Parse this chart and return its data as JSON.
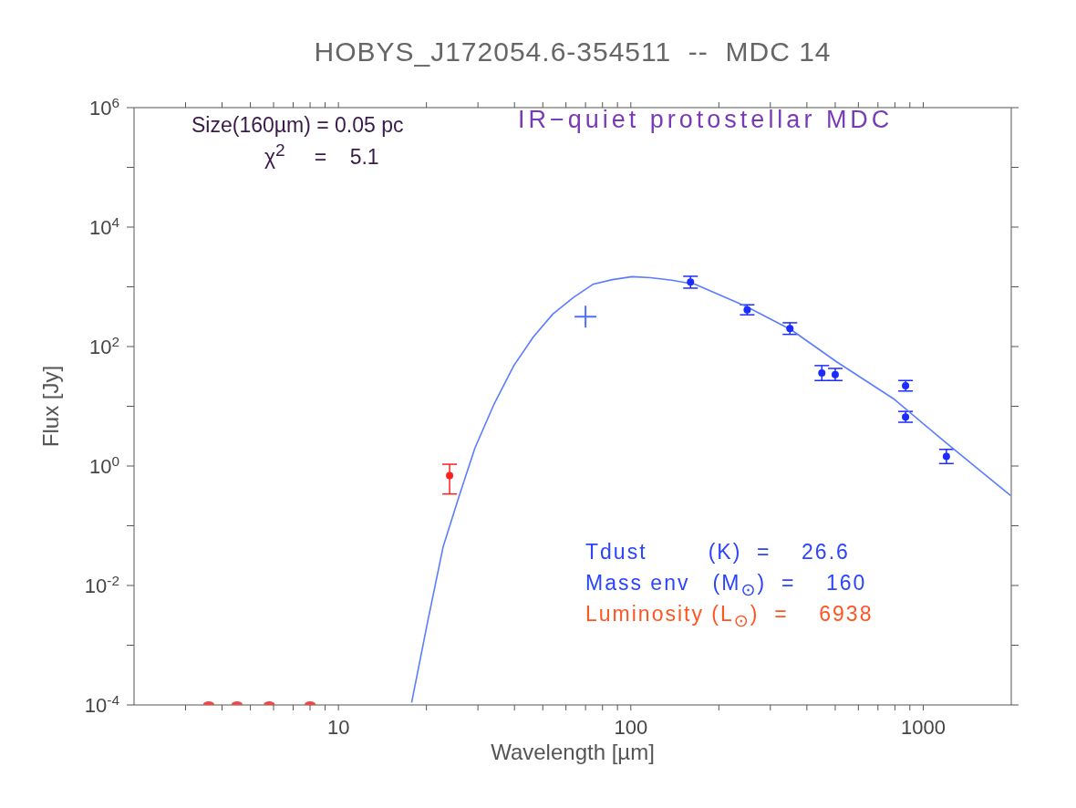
{
  "chart_data": {
    "type": "scatter",
    "title": "HOBYS_J172054.6-354511  --  MDC 14",
    "xlabel": "Wavelength [µm]",
    "ylabel": "Flux [Jy]",
    "log": "xy",
    "xlim": [
      2,
      2000
    ],
    "ylim": [
      0.0001,
      1000000
    ],
    "xticks": [
      {
        "value": 3,
        "label": null
      },
      {
        "value": 4,
        "label": null
      },
      {
        "value": 5,
        "label": null
      },
      {
        "value": 6,
        "label": null
      },
      {
        "value": 7,
        "label": null
      },
      {
        "value": 8,
        "label": null
      },
      {
        "value": 9,
        "label": null
      },
      10,
      {
        "value": 20,
        "label": null
      },
      {
        "value": 30,
        "label": null
      },
      {
        "value": 40,
        "label": null
      },
      {
        "value": 50,
        "label": null
      },
      {
        "value": 60,
        "label": null
      },
      {
        "value": 70,
        "label": null
      },
      {
        "value": 80,
        "label": null
      },
      {
        "value": 90,
        "label": null
      },
      100,
      {
        "value": 200,
        "label": null
      },
      {
        "value": 300,
        "label": null
      },
      {
        "value": 400,
        "label": null
      },
      {
        "value": 500,
        "label": null
      },
      {
        "value": 600,
        "label": null
      },
      {
        "value": 700,
        "label": null
      },
      {
        "value": 800,
        "label": null
      },
      {
        "value": 900,
        "label": null
      },
      1000
    ],
    "yticks": [
      {
        "value": 0.0001,
        "label": "10$^{-4}$"
      },
      {
        "value": 0.001,
        "label": null
      },
      {
        "value": 0.01,
        "label": "10$^{-2}$"
      },
      {
        "value": 0.1,
        "label": null
      },
      {
        "value": 1,
        "label": "10$^{0}$"
      },
      {
        "value": 10,
        "label": null
      },
      {
        "value": 100,
        "label": "10$^{2}$"
      },
      {
        "value": 1000,
        "label": null
      },
      {
        "value": 10000,
        "label": "10$^{4}$"
      },
      {
        "value": 100000,
        "label": null
      },
      {
        "value": 1000000,
        "label": "10$^{6}$"
      }
    ],
    "series": [
      {
        "type": "line",
        "color": "#5a7dff",
        "marker": "none",
        "x": [
          17.8,
          20.2,
          22.8,
          25.9,
          29.3,
          34.1,
          39.8,
          46.4,
          54.1,
          63.5,
          74.1,
          86.5,
          101,
          117,
          138,
          166,
          248,
          354,
          507,
          798,
          1190,
          1990
        ],
        "values": [
          0.00011,
          0.0025,
          0.044,
          0.32,
          2.0,
          11,
          48,
          145,
          350,
          660,
          1100,
          1320,
          1480,
          1420,
          1290,
          1100,
          470,
          190,
          55,
          13,
          2.5,
          0.32
        ]
      },
      {
        "color": "#1a2cff",
        "marker": "circle",
        "x": [
          160,
          250,
          350,
          450,
          500,
          870,
          870,
          1200
        ],
        "values": [
          1200,
          410,
          200,
          36,
          34,
          22,
          6.6,
          1.45
        ],
        "errors": [
          [
            950,
            1500
          ],
          [
            340,
            500
          ],
          [
            160,
            250
          ],
          [
            27,
            48
          ],
          [
            27,
            43
          ],
          [
            18,
            27
          ],
          [
            5.4,
            8.2
          ],
          [
            1.1,
            1.9
          ]
        ]
      },
      {
        "color": "#ff2020",
        "marker": "circle",
        "x": [
          24
        ],
        "values": [
          0.69
        ],
        "errors": [
          [
            0.34,
            1.07
          ]
        ]
      },
      {
        "color": "#4d6fff",
        "marker": "cross",
        "x": [
          70
        ],
        "values": [
          315
        ]
      },
      {
        "color": "#f04848",
        "x": [
          3.6,
          4.5,
          5.8,
          8.0
        ],
        "values": [
          0.0001,
          0.0001,
          0.0001,
          0.0001
        ]
      }
    ],
    "annotations": [
      "Size(160µm) = 0.05 pc",
      "χ$^{2}$     =    5.1",
      "IR−quiet protostellar MDC",
      "Tdust        (K)  =    26.6",
      "Mass env   (M$_{⊙}$)  =    160",
      "Luminosity (L$_{⊙}$)  =    6938"
    ]
  }
}
